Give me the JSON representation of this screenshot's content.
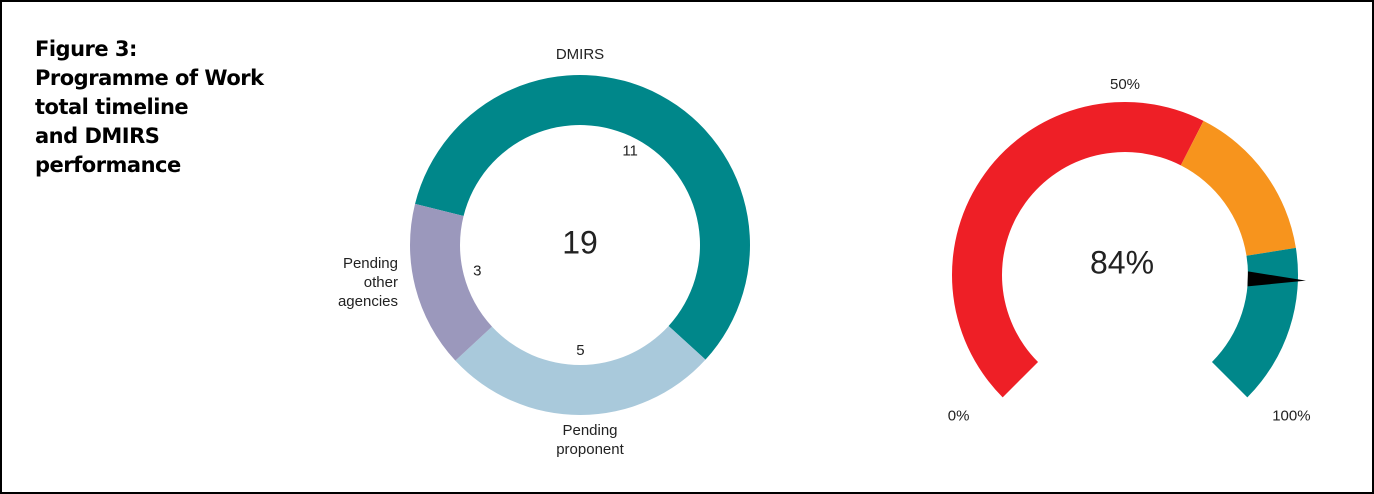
{
  "title": [
    "Figure 3:",
    "Programme of Work",
    "total timeline",
    "and DMIRS",
    "performance"
  ],
  "chart_data": [
    {
      "type": "donut",
      "categories": [
        "DMIRS",
        "Pending proponent",
        "Pending other agencies"
      ],
      "values": [
        11,
        5,
        3
      ],
      "colors": [
        "#00878a",
        "#a9c9db",
        "#9b98bc"
      ],
      "total": 19
    },
    {
      "type": "gauge",
      "value": 84,
      "value_label": "84%",
      "range": [
        0,
        100
      ],
      "ticks": [
        {
          "value": 0,
          "label": "0%"
        },
        {
          "value": 50,
          "label": "50%"
        },
        {
          "value": 100,
          "label": "100%"
        }
      ],
      "bands": [
        {
          "from": 0,
          "to": 60,
          "color": "#ee1f26"
        },
        {
          "from": 60,
          "to": 80,
          "color": "#f7941d"
        },
        {
          "from": 80,
          "to": 100,
          "color": "#00878a"
        }
      ],
      "needle_color": "#000000"
    }
  ]
}
